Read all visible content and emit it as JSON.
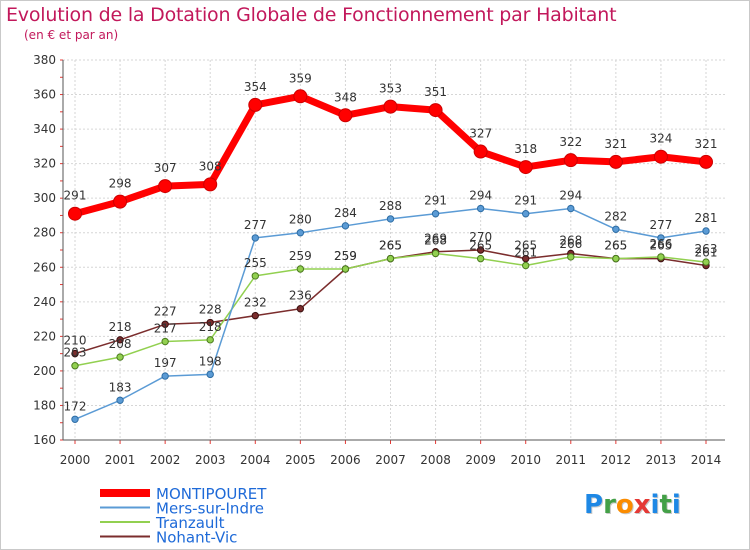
{
  "header": {
    "title": "Evolution de la Dotation Globale de Fonctionnement par Habitant",
    "subtitle": "(en € et par an)"
  },
  "logo": {
    "text": "Proxiti",
    "letters": [
      "P",
      "r",
      "o",
      "x",
      "i",
      "t",
      "i"
    ],
    "colors": [
      "#1e88e5",
      "#43a047",
      "#fb8c00",
      "#e53935",
      "#1e88e5",
      "#43a047",
      "#1e88e5"
    ]
  },
  "chart_data": {
    "type": "line",
    "x": [
      2000,
      2001,
      2002,
      2003,
      2004,
      2005,
      2006,
      2007,
      2008,
      2009,
      2010,
      2011,
      2012,
      2013,
      2014
    ],
    "ylim": [
      160,
      380
    ],
    "yticks": [
      160,
      180,
      200,
      220,
      240,
      260,
      280,
      300,
      320,
      340,
      360,
      380
    ],
    "grid": true,
    "legend_position": "bottom-left",
    "series": [
      {
        "name": "MONTIPOURET",
        "color": "#ff0000",
        "values": [
          291,
          298,
          307,
          308,
          354,
          359,
          348,
          353,
          351,
          327,
          318,
          322,
          321,
          324,
          321
        ]
      },
      {
        "name": "Mers-sur-Indre",
        "color": "#5b9bd5",
        "values": [
          172,
          183,
          197,
          198,
          277,
          280,
          284,
          288,
          291,
          294,
          291,
          294,
          282,
          277,
          281
        ]
      },
      {
        "name": "Tranzault",
        "color": "#92d050",
        "values": [
          203,
          208,
          217,
          218,
          255,
          259,
          259,
          265,
          268,
          265,
          261,
          266,
          265,
          266,
          263
        ]
      },
      {
        "name": "Nohant-Vic",
        "color": "#7b2d2d",
        "values": [
          210,
          218,
          227,
          228,
          232,
          236,
          259,
          265,
          269,
          270,
          265,
          268,
          265,
          265,
          261
        ]
      }
    ]
  }
}
